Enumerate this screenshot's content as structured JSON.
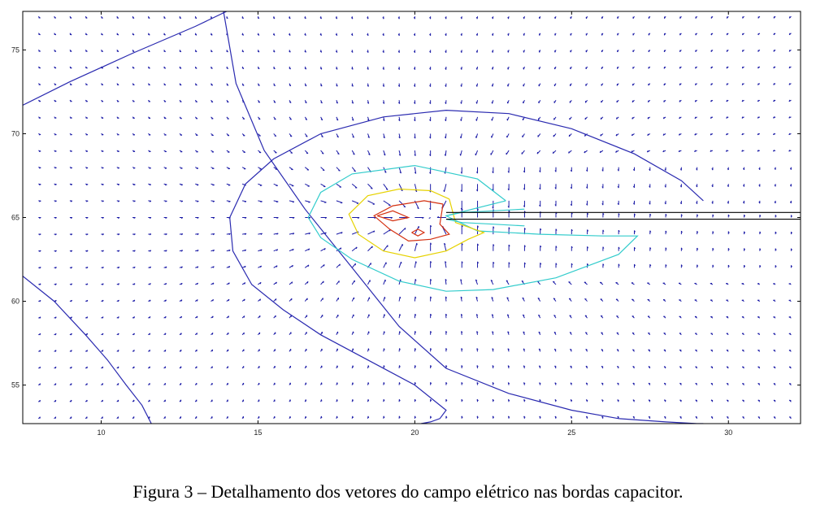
{
  "caption": "Figura 3 – Detalhamento dos vetores do campo elétrico nas bordas capacitor.",
  "chart_data": {
    "type": "quiver+contour",
    "title": "",
    "xlabel": "",
    "ylabel": "",
    "xlim": [
      7.5,
      32.3
    ],
    "ylim": [
      52.7,
      77.3
    ],
    "xticks": [
      10,
      15,
      20,
      25,
      30
    ],
    "yticks": [
      55,
      60,
      65,
      70,
      75
    ],
    "grid": false,
    "colors": {
      "axes": "#000000",
      "arrows": "#1a1aa6",
      "level1": "#2a2ab0",
      "level2": "#33cccc",
      "level3": "#e6d200",
      "level4": "#d43010",
      "plates": "#000000"
    },
    "capacitor_plates": [
      {
        "x": [
          21.0,
          32.3
        ],
        "y": 65.3
      },
      {
        "x": [
          21.0,
          32.3
        ],
        "y": 64.9
      }
    ],
    "contours": [
      {
        "level": "level1",
        "x": [
          13.9,
          14.3,
          15.2,
          16.5,
          18.0,
          19.5,
          21.0,
          23.0,
          25.0,
          26.5,
          28.0,
          29.0,
          29.2
        ],
        "y": [
          77.3,
          73.0,
          69.0,
          65.5,
          62.0,
          58.5,
          56.0,
          54.5,
          53.5,
          53.0,
          52.8,
          52.7,
          52.7
        ]
      },
      {
        "level": "level1",
        "x": [
          7.5,
          8.5,
          9.5,
          10.2,
          10.8,
          11.3,
          11.6
        ],
        "y": [
          61.5,
          60.0,
          58.0,
          56.5,
          55.0,
          53.8,
          52.7
        ]
      },
      {
        "level": "level1",
        "x": [
          7.5,
          9.0,
          11.0,
          13.0,
          14.0
        ],
        "y": [
          71.7,
          73.1,
          74.8,
          76.4,
          77.3
        ]
      },
      {
        "level": "level1",
        "x": [
          29.2,
          28.5,
          27.0,
          25.0,
          23.0,
          21.0,
          19.0,
          17.0,
          15.5,
          14.6,
          14.1,
          14.2,
          14.8,
          15.8,
          17.0,
          18.5,
          20.0,
          21.0,
          20.8,
          20.5,
          20.2
        ],
        "y": [
          66.0,
          67.2,
          68.8,
          70.3,
          71.2,
          71.4,
          71.0,
          70.0,
          68.5,
          67.0,
          65.0,
          63.0,
          61.0,
          59.5,
          58.0,
          56.5,
          55.0,
          53.5,
          53.0,
          52.8,
          52.7
        ]
      },
      {
        "level": "level2",
        "x": [
          22.9,
          22.0,
          20.0,
          18.0,
          17.0,
          16.6,
          17.0,
          18.0,
          19.5,
          21.0,
          22.5,
          24.5,
          26.5,
          27.1,
          26.0,
          24.0,
          22.0,
          21.0,
          22.9
        ],
        "y": [
          66.0,
          67.3,
          68.1,
          67.6,
          66.5,
          65.0,
          63.8,
          62.5,
          61.2,
          60.6,
          60.7,
          61.4,
          62.8,
          63.9,
          63.9,
          64.0,
          64.2,
          65.1,
          66.0
        ]
      },
      {
        "level": "level3",
        "x": [
          21.1,
          20.5,
          19.5,
          18.5,
          17.9,
          18.2,
          19.0,
          20.0,
          21.0,
          21.7,
          22.2,
          21.3,
          21.1
        ],
        "y": [
          66.1,
          66.6,
          66.7,
          66.3,
          65.2,
          64.0,
          63.0,
          62.6,
          63.0,
          63.7,
          64.1,
          64.7,
          66.1
        ]
      },
      {
        "level": "level4",
        "x": [
          20.9,
          20.3,
          19.3,
          18.7,
          19.2,
          19.8,
          20.5,
          21.1,
          20.8,
          20.9
        ],
        "y": [
          65.8,
          66.0,
          65.7,
          65.1,
          64.3,
          63.6,
          63.7,
          64.0,
          64.6,
          65.8
        ]
      },
      {
        "level": "level4",
        "x": [
          18.8,
          19.3,
          19.8,
          19.3,
          18.8
        ],
        "y": [
          65.1,
          65.4,
          65.0,
          64.8,
          65.1
        ]
      },
      {
        "level": "level4",
        "x": [
          19.9,
          20.1,
          20.3,
          20.1,
          19.9
        ],
        "y": [
          64.1,
          64.3,
          64.1,
          63.9,
          64.1
        ]
      },
      {
        "level": "level2",
        "x": [
          21.0,
          21.5,
          22.5,
          23.5
        ],
        "y": [
          65.1,
          65.3,
          65.4,
          65.5
        ]
      },
      {
        "level": "level2",
        "x": [
          21.0,
          21.5,
          22.5,
          23.5
        ],
        "y": [
          64.9,
          64.7,
          64.6,
          64.5
        ]
      }
    ],
    "field_vectors": {
      "x_range": [
        8.0,
        32.0
      ],
      "x_step": 0.5,
      "y_range": [
        53.0,
        77.0
      ],
      "y_step": 1.0,
      "source_point": [
        20.5,
        65.0
      ]
    }
  }
}
